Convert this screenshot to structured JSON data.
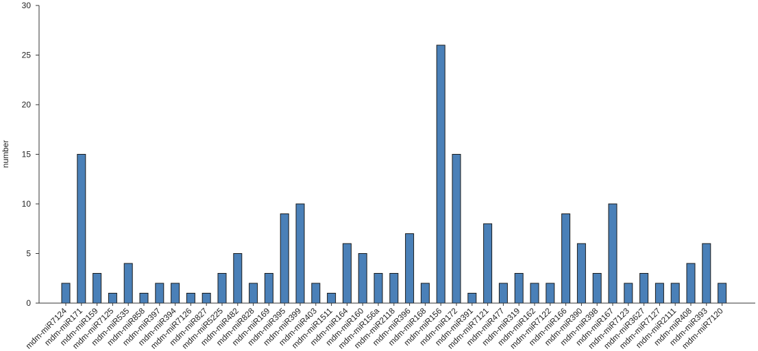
{
  "chart_data": {
    "type": "bar",
    "title": "",
    "xlabel": "",
    "ylabel": "number",
    "ylim": [
      0,
      30
    ],
    "yticks": [
      0,
      5,
      10,
      15,
      20,
      25,
      30
    ],
    "grid": false,
    "bar_color": "#4a80b8",
    "categories": [
      "mdm-miR7124",
      "mdm-miR171",
      "mdm-miR159",
      "mdm-miR7125",
      "mdm-miR535",
      "mdm-miR858",
      "mdm-miR397",
      "mdm-miR394",
      "mdm-miR7126",
      "mdm-miR827",
      "mdm-miR5225",
      "mdm-miR482",
      "mdm-miR828",
      "mdm-miR169",
      "mdm-miR395",
      "mdm-miR399",
      "mdm-miR403",
      "mdm-miR1511",
      "mdm-miR164",
      "mdm-miR160",
      "mdm-miR156a",
      "mdm-miR2118",
      "mdm-miR396",
      "mdm-miR168",
      "mdm-miR156",
      "mdm-miR172",
      "mdm-miR391",
      "mdm-miR7121",
      "mdm-miR477",
      "mdm-miR319",
      "mdm-miR162",
      "mdm-miR7122",
      "mdm-miR166",
      "mdm-miR390",
      "mdm-miR398",
      "mdm-miR167",
      "mdm-miR7123",
      "mdm-miR3627",
      "mdm-miR7127",
      "mdm-miR2111",
      "mdm-miR408",
      "mdm-miR393",
      "mdm-miR7120"
    ],
    "values": [
      2,
      15,
      3,
      1,
      4,
      1,
      2,
      2,
      1,
      1,
      3,
      5,
      2,
      3,
      9,
      10,
      2,
      1,
      6,
      5,
      3,
      3,
      7,
      2,
      26,
      15,
      1,
      8,
      2,
      3,
      2,
      2,
      9,
      6,
      3,
      10,
      2,
      3,
      2,
      2,
      4,
      6,
      2
    ]
  }
}
